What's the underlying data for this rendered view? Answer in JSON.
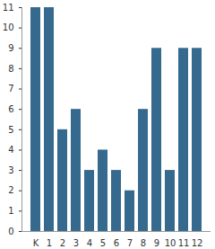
{
  "chart_data": {
    "type": "bar",
    "categories": [
      "K",
      "1",
      "2",
      "3",
      "4",
      "5",
      "6",
      "7",
      "8",
      "9",
      "10",
      "11",
      "12"
    ],
    "values": [
      11,
      11,
      5,
      6,
      3,
      4,
      3,
      2,
      6,
      9,
      3,
      9,
      9
    ],
    "color": "#356a8e",
    "ylim": [
      0,
      11
    ],
    "yticks": [
      0,
      1,
      2,
      3,
      4,
      5,
      6,
      7,
      8,
      9,
      10,
      11
    ],
    "grid": false
  }
}
